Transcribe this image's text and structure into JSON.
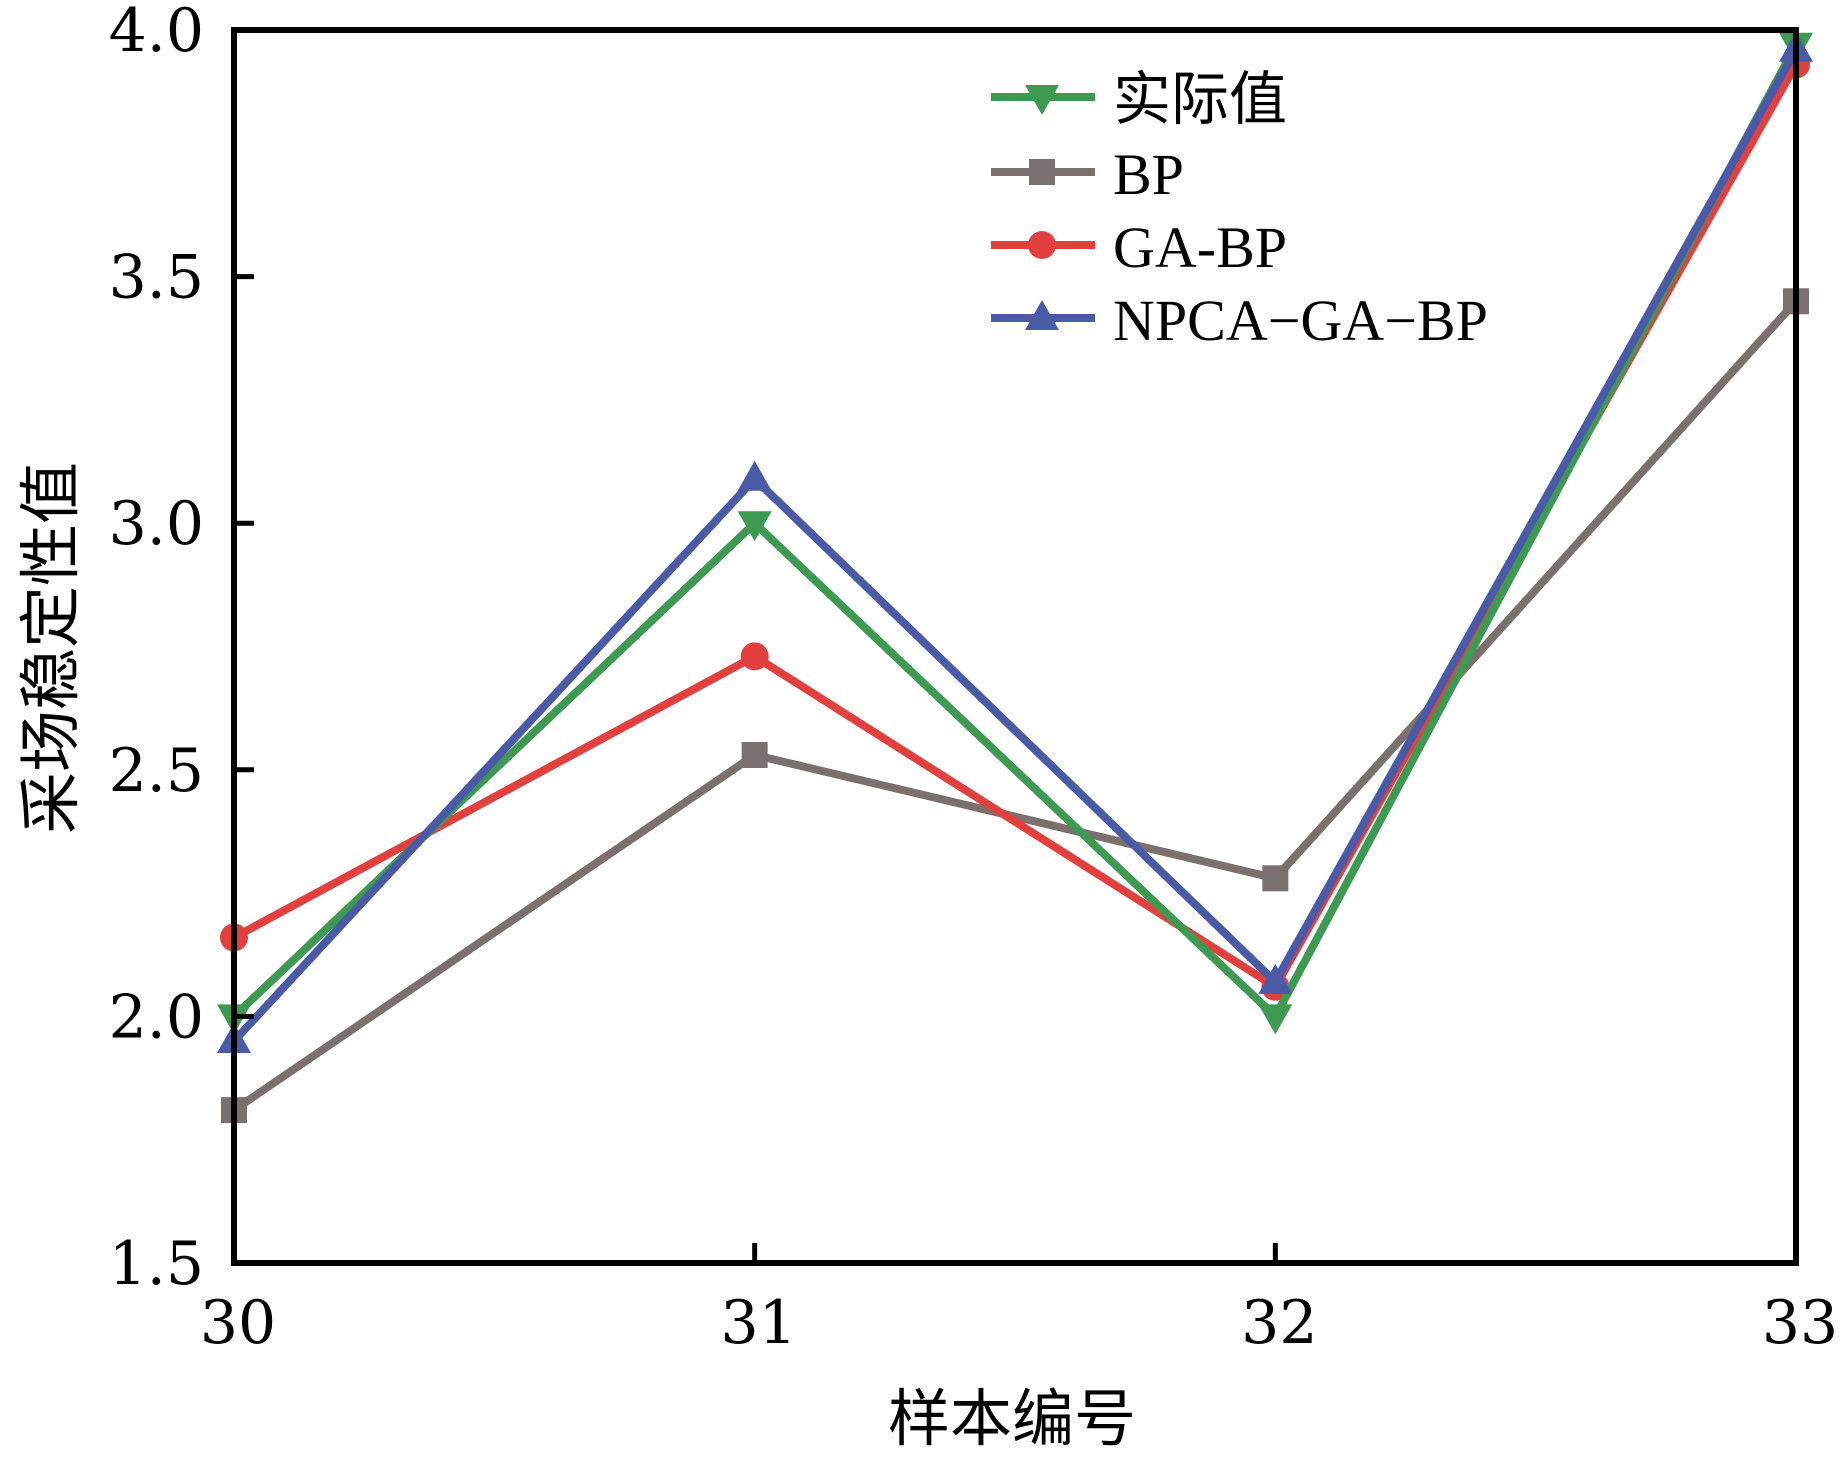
{
  "chart_data": {
    "type": "line",
    "title": "",
    "xlabel": "样本编号",
    "ylabel": "采场稳定性值",
    "x": [
      30,
      31,
      32,
      33
    ],
    "x_tick_labels": [
      "30",
      "31",
      "32",
      "33"
    ],
    "xlim": [
      30,
      33
    ],
    "ylim": [
      1.5,
      4.0
    ],
    "y_ticks": [
      1.5,
      2.0,
      2.5,
      3.0,
      3.5,
      4.0
    ],
    "y_tick_labels": [
      "1.5",
      "2.0",
      "2.5",
      "3.0",
      "3.5",
      "4.0"
    ],
    "grid": false,
    "legend_position": "top-right",
    "series": [
      {
        "name": "实际值",
        "marker": "triangle-down",
        "color": "#3e9a52",
        "values": [
          2.0,
          3.0,
          2.0,
          3.97
        ]
      },
      {
        "name": "BP",
        "marker": "square",
        "color": "#7a716e",
        "values": [
          1.81,
          2.53,
          2.28,
          3.45
        ]
      },
      {
        "name": "GA-BP",
        "marker": "circle",
        "color": "#e2403f",
        "values": [
          2.16,
          2.73,
          2.06,
          3.93
        ]
      },
      {
        "name": "NPCA-GA-BP",
        "marker": "triangle-up",
        "color": "#4a5aa6",
        "values": [
          1.95,
          3.09,
          2.07,
          3.96
        ]
      }
    ],
    "legend_labels": [
      "实际值",
      "BP",
      "GA-BP",
      "NPCA−GA−BP"
    ]
  }
}
